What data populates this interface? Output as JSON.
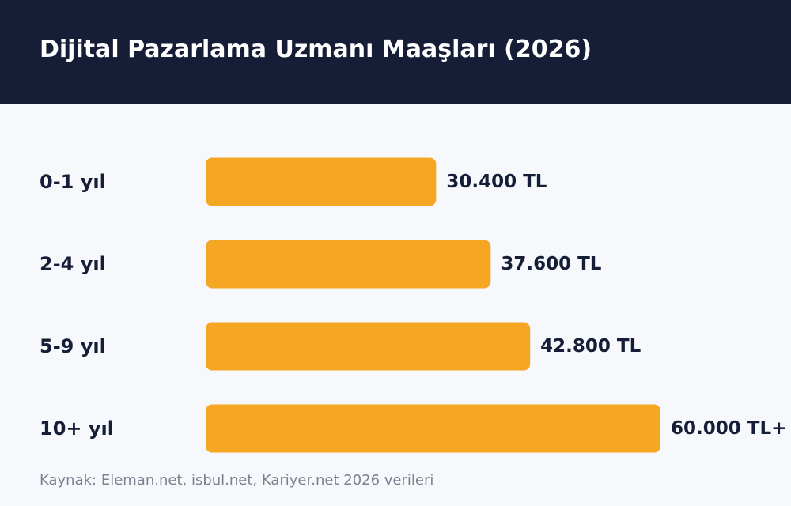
{
  "header": {
    "title": "Dijital Pazarlama Uzmanı Maaşları (2026)"
  },
  "chart_data": {
    "type": "bar",
    "orientation": "horizontal",
    "title": "Dijital Pazarlama Uzmanı Maaşları (2026)",
    "categories": [
      "0-1 yıl",
      "2-4 yıl",
      "5-9 yıl",
      "10+ yıl"
    ],
    "values": [
      30400,
      37600,
      42800,
      60000
    ],
    "value_labels": [
      "30.400 TL",
      "37.600 TL",
      "42.800 TL",
      "60.000 TL+"
    ],
    "xlim": [
      0,
      60000
    ],
    "grid": false,
    "legend": "none",
    "colors": {
      "bar": "#f5a623",
      "header_bg": "#161d36",
      "text": "#161d36",
      "page_bg": "#f6f8fb",
      "source_text": "#7a8291"
    }
  },
  "footer": {
    "source": "Kaynak: Eleman.net, isbul.net, Kariyer.net 2026 verileri"
  }
}
